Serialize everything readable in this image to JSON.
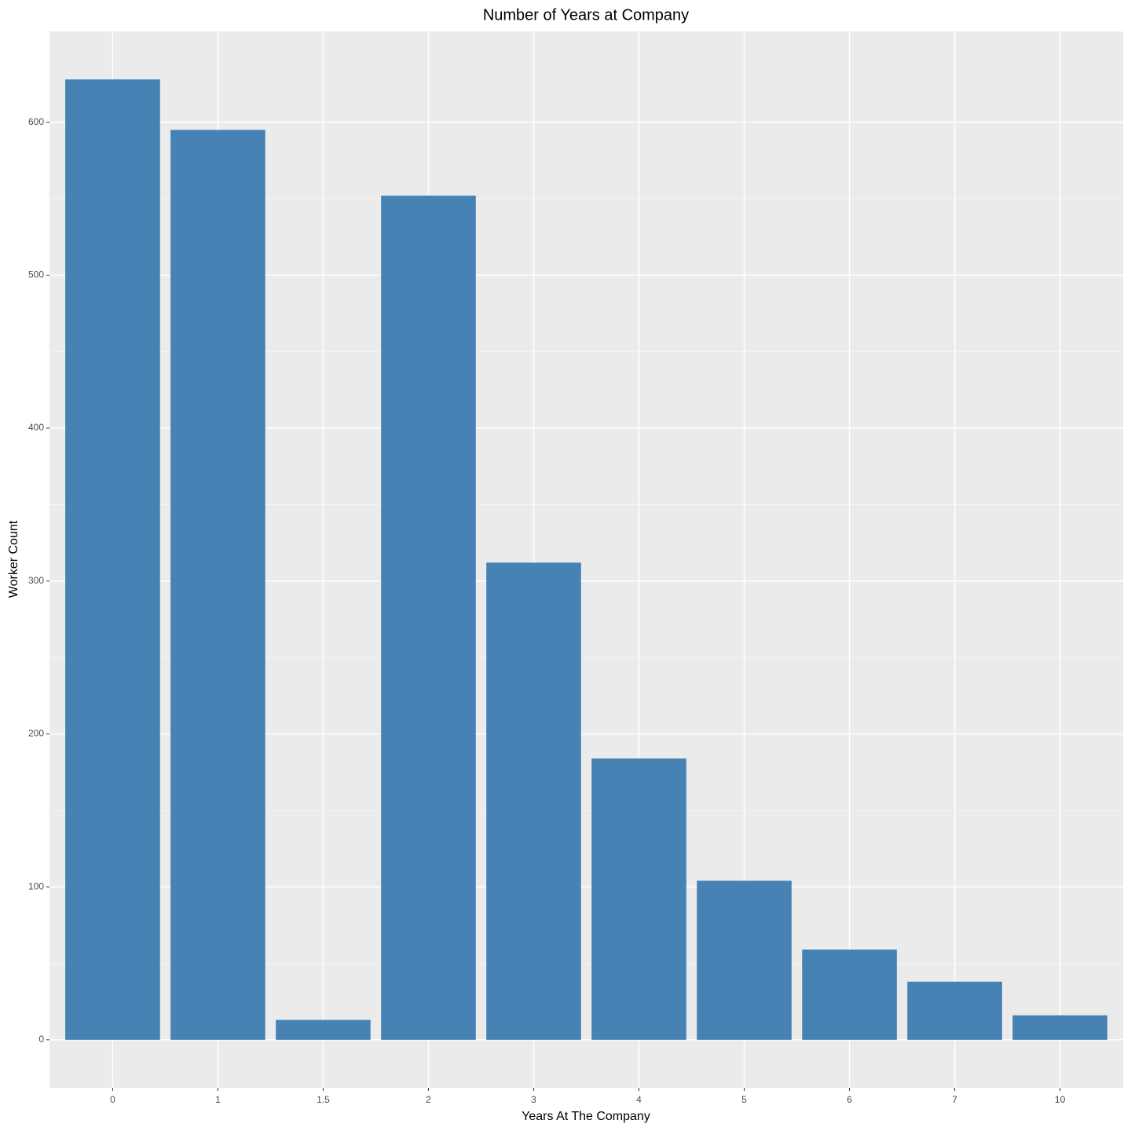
{
  "chart_data": {
    "type": "bar",
    "title": "Number of Years at Company",
    "x_label": "Years At The Company",
    "y_label": "Worker Count",
    "categories": [
      "0",
      "1",
      "1.5",
      "2",
      "3",
      "4",
      "5",
      "6",
      "7",
      "10"
    ],
    "values": [
      628,
      595,
      13,
      552,
      312,
      184,
      104,
      59,
      38,
      16
    ],
    "color": "#4682b4",
    "ylim": [
      -31.4,
      659.4
    ],
    "yticks": [
      0,
      100,
      200,
      300,
      400,
      500,
      600
    ],
    "grid": true
  }
}
